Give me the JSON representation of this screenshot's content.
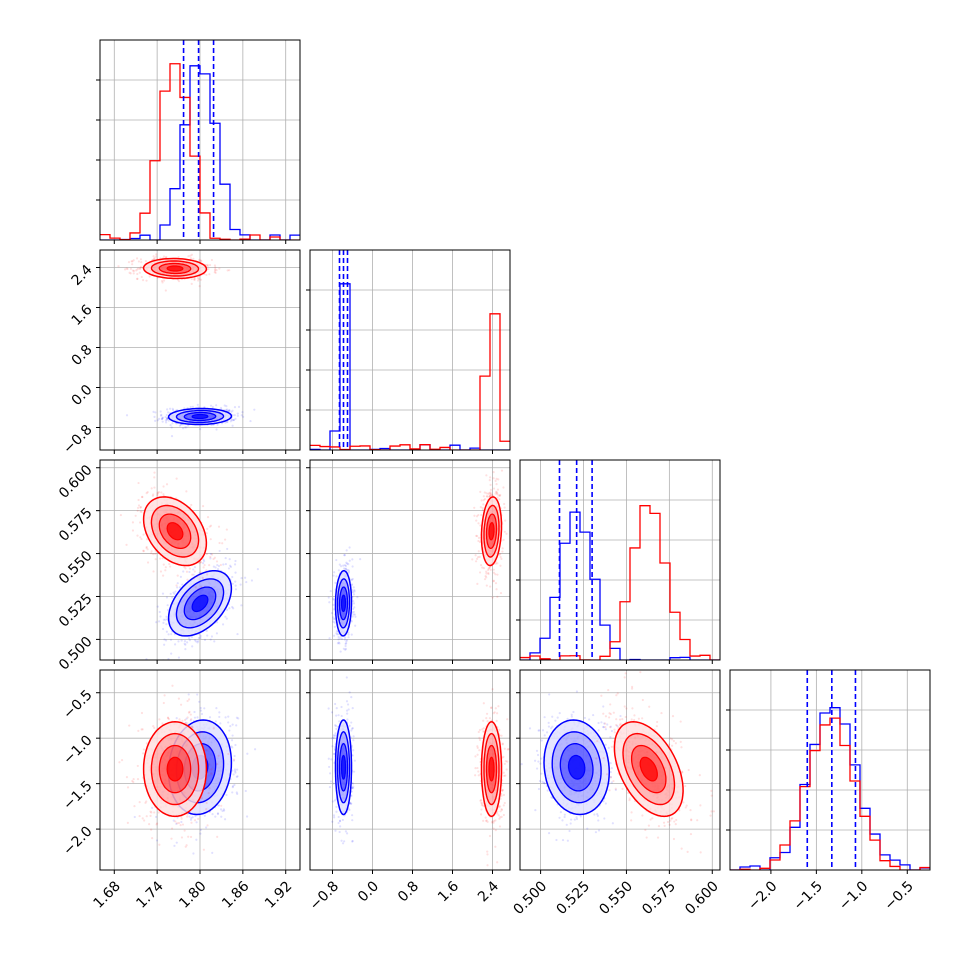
{
  "colors": {
    "blue": "#0000ff",
    "red": "#ff0000",
    "grid": "#b0b0b0",
    "frame": "#000000"
  },
  "chart_data": {
    "type": "corner",
    "grid": true,
    "ticks": {
      "x0": [
        "1.68",
        "1.74",
        "1.80",
        "1.86",
        "1.92"
      ],
      "x1": [
        "−0.8",
        "0.0",
        "0.8",
        "1.6",
        "2.4"
      ],
      "x2": [
        "0.500",
        "0.525",
        "0.550",
        "0.575",
        "0.600"
      ],
      "x3": [
        "−2.0",
        "−1.5",
        "−1.0",
        "−0.5"
      ],
      "y1": [
        "2.4",
        "1.6",
        "0.8",
        "0.0",
        "−0.8"
      ],
      "y2": [
        "0.600",
        "0.575",
        "0.550",
        "0.525",
        "0.500"
      ],
      "y3": [
        "−0.5",
        "−1.0",
        "−1.5",
        "−2.0"
      ]
    },
    "params": [
      {
        "range": [
          1.66,
          1.94
        ],
        "ticks": [
          1.68,
          1.74,
          1.8,
          1.86,
          1.92
        ]
      },
      {
        "range": [
          -1.25,
          2.75
        ],
        "ticks": [
          -0.8,
          0.0,
          0.8,
          1.6,
          2.4
        ]
      },
      {
        "range": [
          0.488,
          0.6045
        ],
        "ticks": [
          0.5,
          0.525,
          0.55,
          0.575,
          0.6
        ]
      },
      {
        "range": [
          -2.45,
          -0.25
        ],
        "ticks": [
          -2.0,
          -1.5,
          -1.0,
          -0.5
        ]
      }
    ],
    "series": [
      {
        "color": "blue",
        "means": [
          1.8,
          -0.58,
          0.521,
          -1.32
        ],
        "sds": [
          0.022,
          0.08,
          0.0095,
          0.26
        ],
        "corr": {
          "0-1": 0.05,
          "0-2": 0.45,
          "0-3": 0.1,
          "1-2": 0.05,
          "1-3": 0.0,
          "2-3": -0.1
        },
        "quantiles": [
          [
            1.777,
            1.798,
            1.819
          ],
          [
            -0.66,
            -0.58,
            -0.5
          ],
          [
            0.511,
            0.521,
            0.53
          ],
          [
            -1.6,
            -1.33,
            -1.07
          ]
        ],
        "hist_peaks": [
          1.0,
          1.0,
          0.82,
          0.9
        ]
      },
      {
        "color": "red",
        "means": [
          1.765,
          2.38,
          0.563,
          -1.34
        ],
        "sds": [
          0.022,
          0.1,
          0.01,
          0.26
        ],
        "corr": {
          "0-1": -0.05,
          "0-2": -0.35,
          "0-3": 0.0,
          "1-2": 0.15,
          "1-3": 0.0,
          "2-3": -0.45
        },
        "quantiles": [],
        "hist_peaks": [
          1.0,
          1.0,
          0.87,
          0.85
        ]
      }
    ]
  }
}
